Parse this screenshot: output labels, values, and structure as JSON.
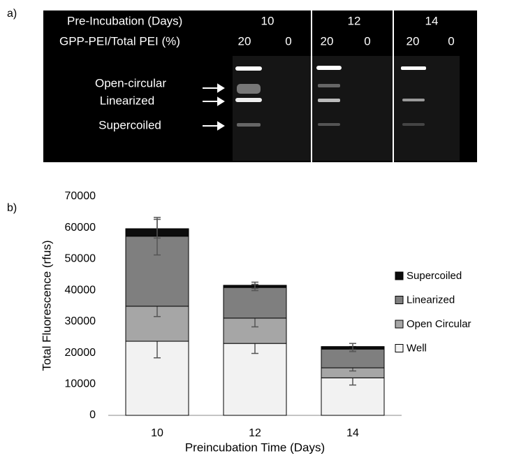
{
  "panel_a": {
    "label": "a)",
    "row1_label": "Pre-Incubation (Days)",
    "days": [
      "10",
      "12",
      "14"
    ],
    "row2_label": "GPP-PEI/Total PEI (%)",
    "lanes": [
      "20",
      "0",
      "20",
      "0",
      "20",
      "0"
    ],
    "bands": [
      "Open-circular",
      "Linearized",
      "Supercoiled"
    ]
  },
  "panel_b_label": "b)",
  "chart_data": {
    "type": "stacked_bar",
    "xlabel": "Preincubation Time (Days)",
    "ylabel": "Total Fluorescence (rfus)",
    "categories": [
      "10",
      "12",
      "14"
    ],
    "series": [
      {
        "name": "Well",
        "color": "#f2f2f2",
        "values": [
          23700,
          23000,
          12000
        ],
        "errors": [
          5300,
          3200,
          2300
        ]
      },
      {
        "name": "Open Circular",
        "color": "#a6a6a6",
        "values": [
          11200,
          8100,
          3200
        ],
        "errors": [
          3300,
          2800,
          1000
        ]
      },
      {
        "name": "Linearized",
        "color": "#7f7f7f",
        "values": [
          22400,
          9800,
          6000
        ],
        "errors": [
          6000,
          1000,
          800
        ]
      },
      {
        "name": "Supercoiled",
        "color": "#0d0d0d",
        "values": [
          2400,
          700,
          800
        ],
        "errors": [
          3000,
          1000,
          1000
        ]
      }
    ],
    "ylim": [
      0,
      70000
    ],
    "yticks": [
      0,
      10000,
      20000,
      30000,
      40000,
      50000,
      60000,
      70000
    ],
    "grid": false,
    "legend": "right"
  }
}
